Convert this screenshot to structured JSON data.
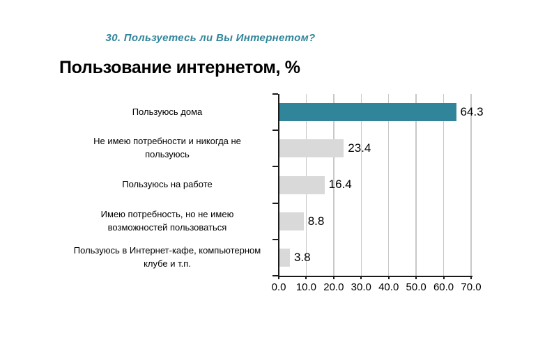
{
  "page": {
    "question_header": "30. Пользуетесь ли Вы Интернетом?",
    "title": "Пользование интернетом, %"
  },
  "chart_data": {
    "type": "bar",
    "orientation": "horizontal",
    "title": "Пользование интернетом, %",
    "categories": [
      "Пользуюсь дома",
      "Не имею потребности и никогда не\nпользуюсь",
      "Пользуюсь на работе",
      "Имею потребность, но не имею\nвозможностей пользоваться",
      "Пользуюсь в Интернет-кафе, компьютерном\nклубе и т.п."
    ],
    "values": [
      64.3,
      23.4,
      16.4,
      8.8,
      3.8
    ],
    "value_labels": [
      "64.3",
      "23.4",
      "16.4",
      "8.8",
      "3.8"
    ],
    "x_tick_labels": [
      "0.0",
      "10.0",
      "20.0",
      "30.0",
      "40.0",
      "50.0",
      "60.0",
      "70.0"
    ],
    "xlim": [
      0,
      70
    ],
    "grid": true,
    "legend": false,
    "bar_colors": [
      "#31859B",
      "#D9D9D9",
      "#D9D9D9",
      "#D9D9D9",
      "#D9D9D9"
    ],
    "colors": {
      "accent_teal": "#31859B",
      "bar_gray": "#D9D9D9",
      "gridline": "#C8C8C8",
      "axis": "#1A1A1A",
      "question_text": "#31859B",
      "background": "#FFFFFF"
    }
  }
}
